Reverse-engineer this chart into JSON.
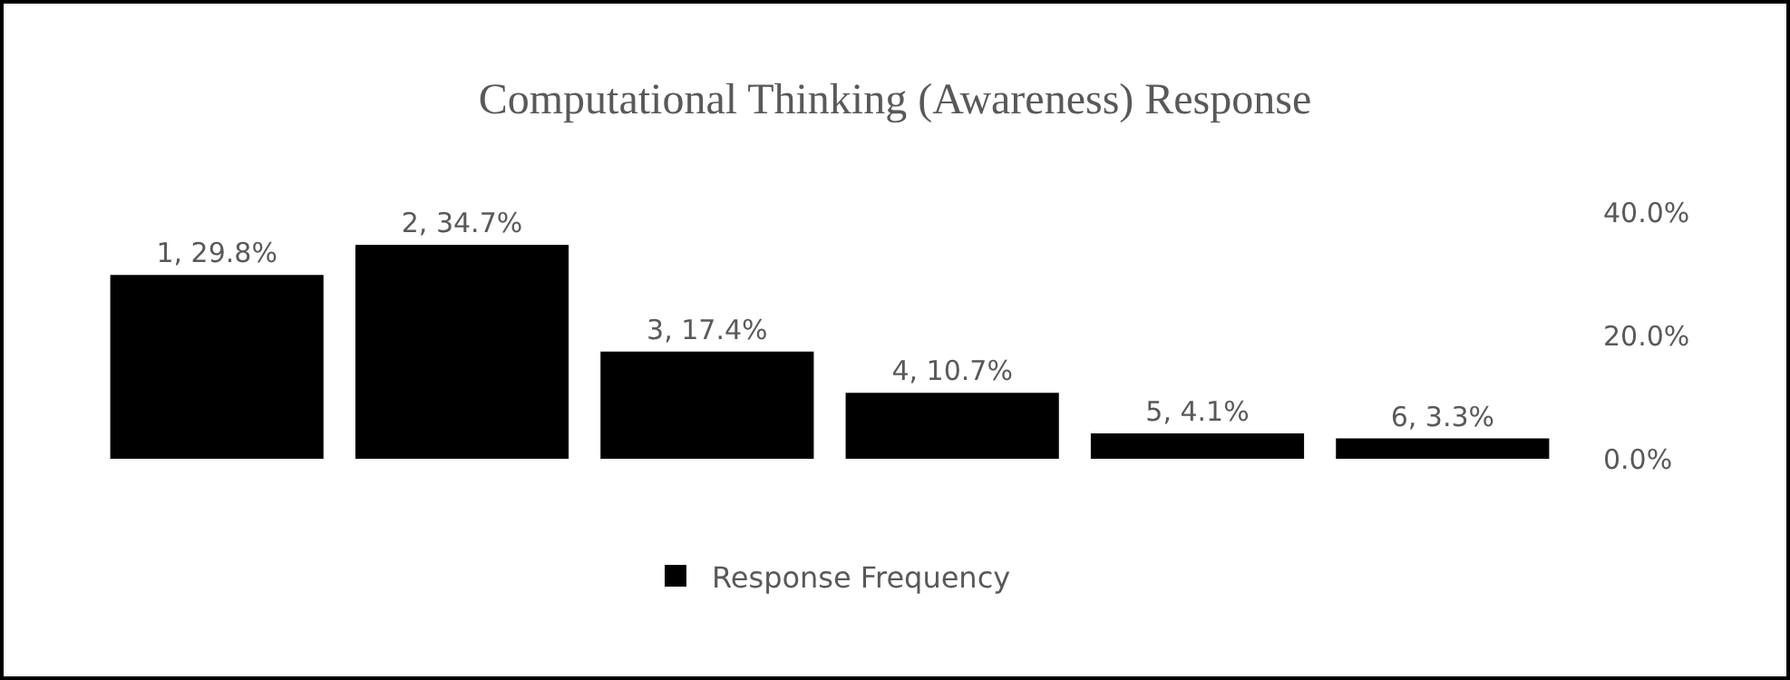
{
  "chart_data": {
    "type": "bar",
    "title": "Computational Thinking (Awareness) Response",
    "categories": [
      null,
      null,
      null,
      null,
      null,
      null
    ],
    "series": [
      {
        "name": "Response Frequency",
        "color": "#000000",
        "values": [
          29.8,
          34.7,
          17.4,
          10.7,
          4.1,
          3.3
        ],
        "value_labels": [
          "1, 29.8%",
          "2, 34.7%",
          "3, 17.4%",
          "4, 10.7%",
          "5, 4.1%",
          "6, 3.3%"
        ]
      }
    ],
    "ylim": [
      0,
      40
    ],
    "yticks": [
      {
        "value": 0,
        "label": "0.0%"
      },
      {
        "value": 20,
        "label": "20.0%"
      },
      {
        "value": 40,
        "label": "40.0%"
      }
    ],
    "tick_labels": "y",
    "grid": false,
    "legend": "bottom"
  }
}
